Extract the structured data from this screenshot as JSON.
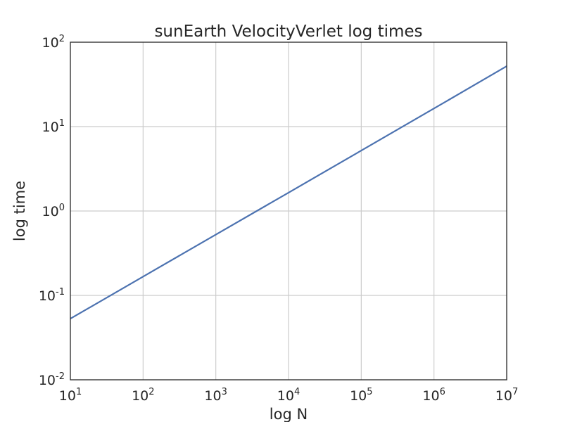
{
  "chart_data": {
    "type": "line",
    "title": "sunEarth VelocityVerlet log times",
    "xlabel": "log N",
    "ylabel": "log time",
    "xscale": "log",
    "yscale": "log",
    "xlim": [
      10,
      10000000
    ],
    "ylim": [
      0.01,
      100
    ],
    "grid": true,
    "xticks": [
      {
        "base": "10",
        "exp": "1",
        "value": 10
      },
      {
        "base": "10",
        "exp": "2",
        "value": 100
      },
      {
        "base": "10",
        "exp": "3",
        "value": 1000
      },
      {
        "base": "10",
        "exp": "4",
        "value": 10000
      },
      {
        "base": "10",
        "exp": "5",
        "value": 100000
      },
      {
        "base": "10",
        "exp": "6",
        "value": 1000000
      },
      {
        "base": "10",
        "exp": "7",
        "value": 10000000
      }
    ],
    "yticks": [
      {
        "base": "10",
        "exp": "-2",
        "value": 0.01
      },
      {
        "base": "10",
        "exp": "-1",
        "value": 0.1
      },
      {
        "base": "10",
        "exp": "0",
        "value": 1
      },
      {
        "base": "10",
        "exp": "1",
        "value": 10
      },
      {
        "base": "10",
        "exp": "2",
        "value": 100
      }
    ],
    "series": [
      {
        "color": "#4c72b0",
        "x": [
          10,
          100,
          1000,
          10000,
          100000,
          1000000,
          10000000
        ],
        "y": [
          0.053,
          0.167,
          0.525,
          1.65,
          5.2,
          16.4,
          52
        ]
      }
    ]
  }
}
